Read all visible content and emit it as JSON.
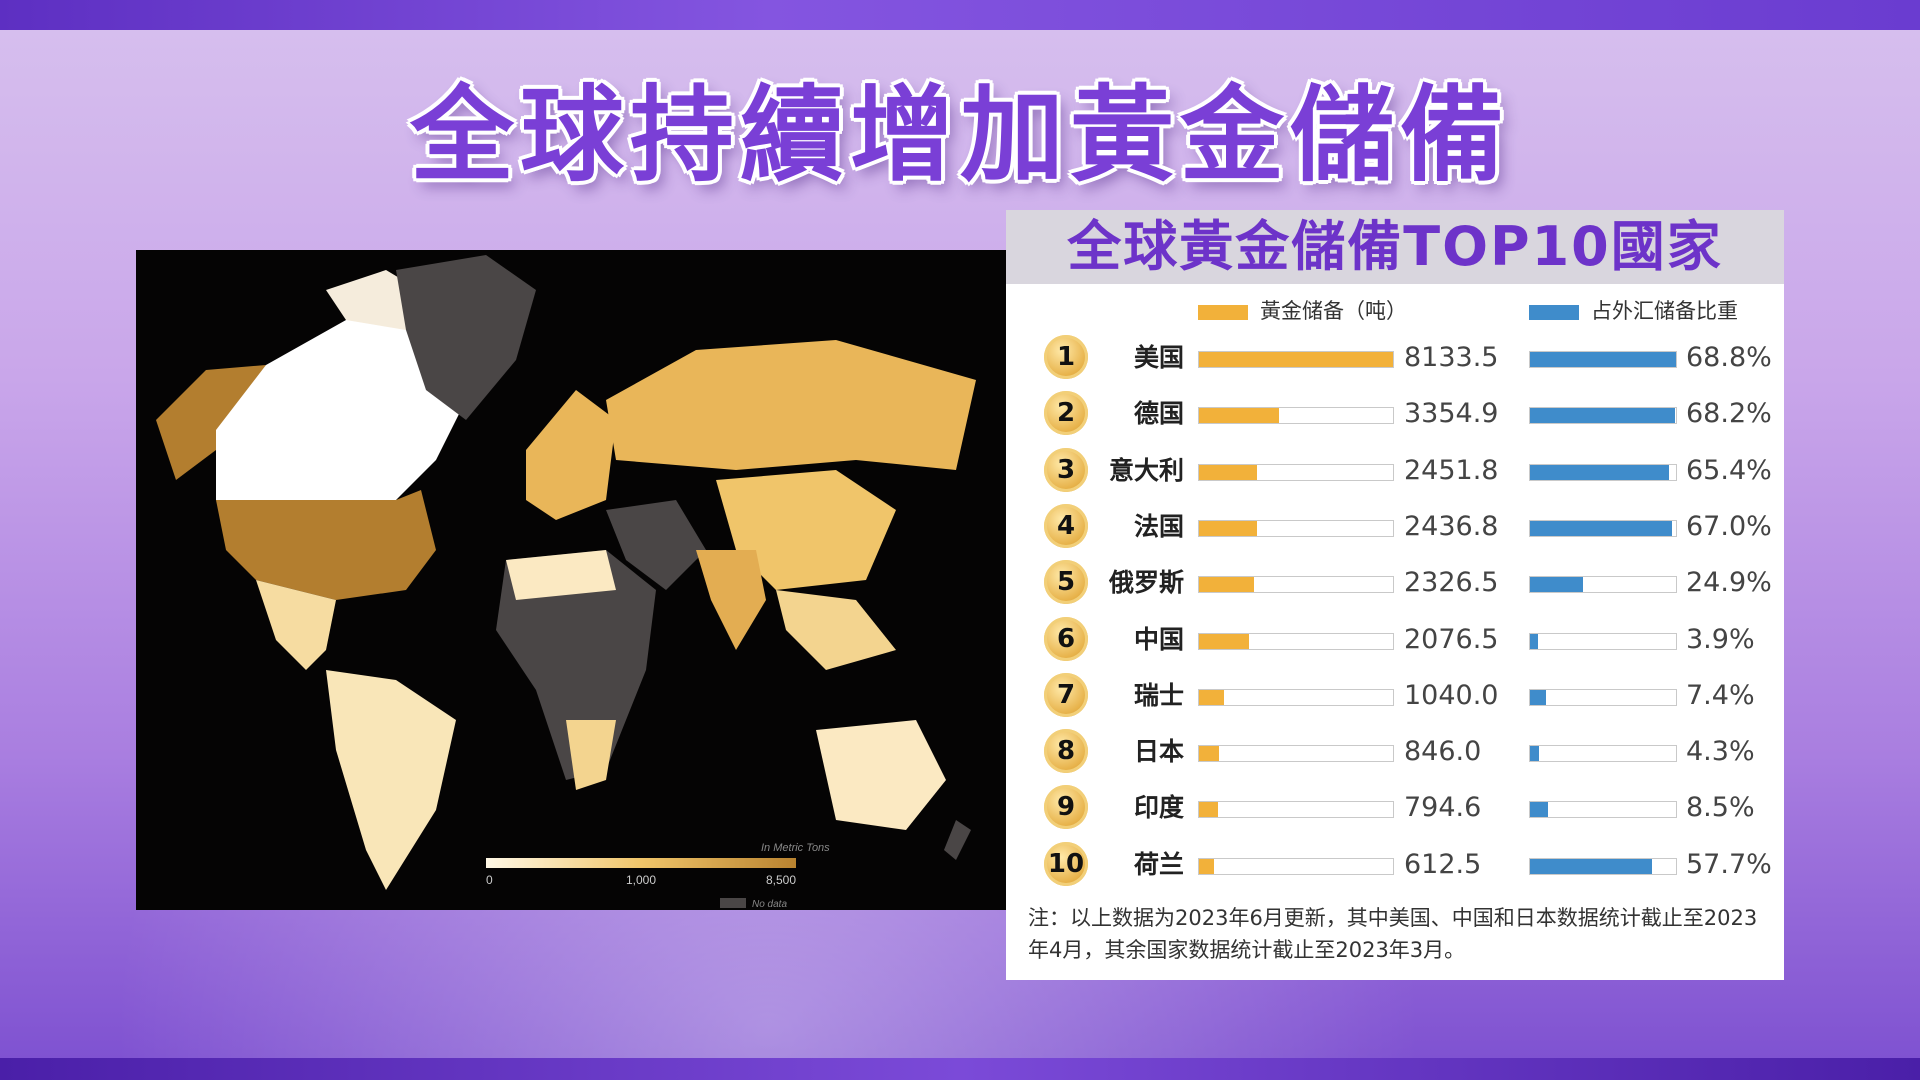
{
  "title": "全球持續增加黃金儲備",
  "table": {
    "title": "全球黃金儲備TOP10國家",
    "legend": {
      "gold": "黃金储备（吨）",
      "ratio": "占外汇储备比重"
    },
    "note": "注：以上数据为2023年6月更新，其中美国、中国和日本数据统计截止至2023年4月，其余国家数据统计截止至2023年3月。"
  },
  "map": {
    "unit_label": "In Metric Tons",
    "scale_ticks": [
      "0",
      "1,000",
      "8,500"
    ],
    "no_data_label": "No data"
  },
  "colors": {
    "gold": "#f2b13a",
    "blue": "#3f8ccb",
    "title": "#7a3fd6"
  },
  "chart_data": {
    "type": "bar",
    "categories": [
      "美国",
      "德国",
      "意大利",
      "法国",
      "俄罗斯",
      "中国",
      "瑞士",
      "日本",
      "印度",
      "荷兰"
    ],
    "ranks": [
      "1",
      "2",
      "3",
      "4",
      "5",
      "6",
      "7",
      "8",
      "9",
      "10"
    ],
    "series": [
      {
        "name": "黃金储备（吨）",
        "values": [
          8133.5,
          3354.9,
          2451.8,
          2436.8,
          2326.5,
          2076.5,
          1040.0,
          846.0,
          794.6,
          612.5
        ],
        "labels": [
          "8133.5",
          "3354.9",
          "2451.8",
          "2436.8",
          "2326.5",
          "2076.5",
          "1040.0",
          "846.0",
          "794.6",
          "612.5"
        ],
        "max": 8133.5
      },
      {
        "name": "占外汇储备比重",
        "values": [
          68.8,
          68.2,
          65.4,
          67.0,
          24.9,
          3.9,
          7.4,
          4.3,
          8.5,
          57.7
        ],
        "labels": [
          "68.8%",
          "68.2%",
          "65.4%",
          "67.0%",
          "24.9%",
          "3.9%",
          "7.4%",
          "4.3%",
          "8.5%",
          "57.7%"
        ],
        "max": 68.8
      }
    ]
  }
}
